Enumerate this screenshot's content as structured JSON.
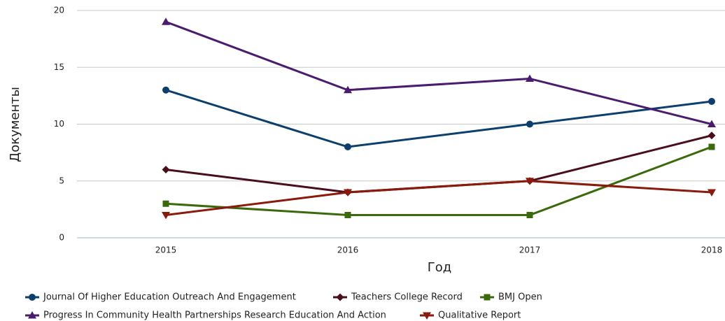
{
  "chart_data": {
    "type": "line",
    "categories": [
      "2015",
      "2016",
      "2017",
      "2018"
    ],
    "x_label": "Год",
    "y_label": "Документы",
    "ylim": [
      0,
      20
    ],
    "yticks": [
      0,
      5,
      10,
      15,
      20
    ],
    "grid": true,
    "series": [
      {
        "name": "Journal Of Higher Education Outreach And Engagement",
        "color": "#0d3f6e",
        "marker": "circle",
        "values": [
          13,
          8,
          10,
          12
        ]
      },
      {
        "name": "Teachers College Record",
        "color": "#4a0d1c",
        "marker": "diamond",
        "values": [
          6,
          4,
          5,
          9
        ]
      },
      {
        "name": "BMJ Open",
        "color": "#3b6a0c",
        "marker": "square",
        "values": [
          3,
          2,
          2,
          8
        ]
      },
      {
        "name": "Progress In Community Health Partnerships Research Education And Action",
        "color": "#4a1b6e",
        "marker": "triangle",
        "values": [
          19,
          13,
          14,
          10
        ]
      },
      {
        "name": "Qualitative Report",
        "color": "#8a1a0c",
        "marker": "triangle-down",
        "values": [
          2,
          4,
          5,
          4
        ]
      }
    ]
  }
}
